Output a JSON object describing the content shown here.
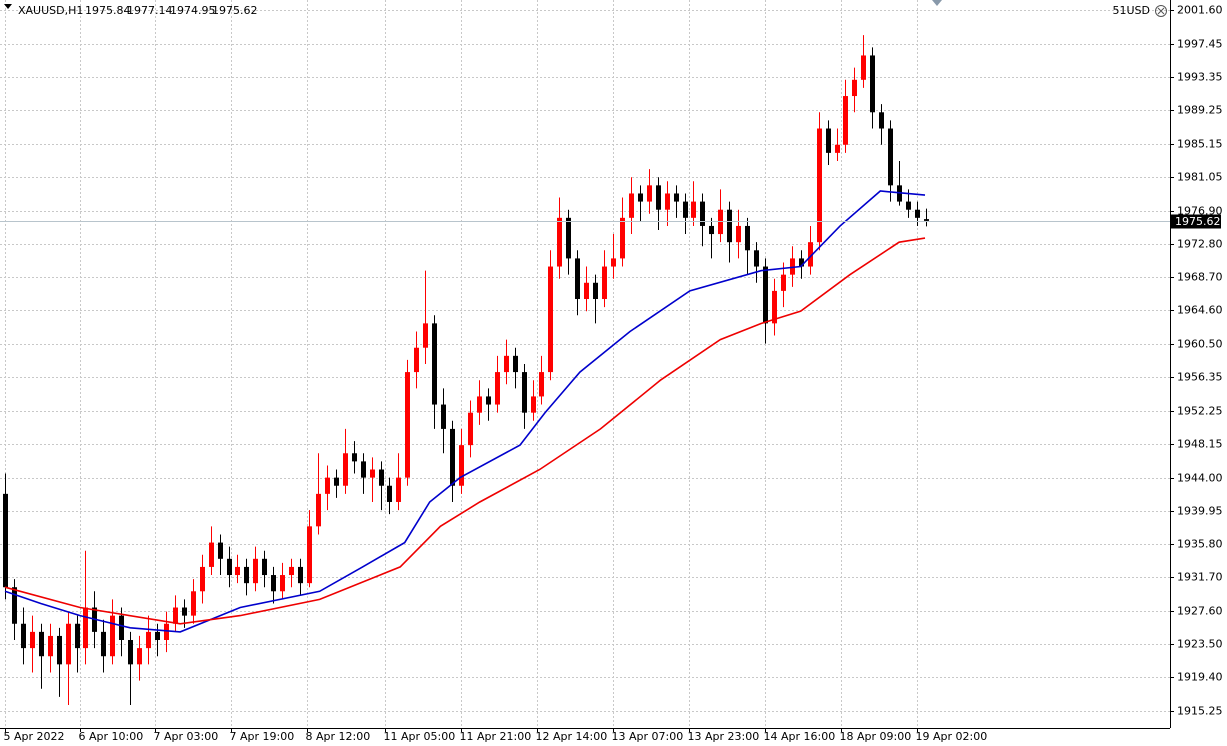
{
  "chart_data": {
    "type": "candlestick",
    "symbol": "XAUUSD,H1",
    "account_label": "51USD",
    "up_color": "#ff0000",
    "down_color": "#000000",
    "grid": true,
    "ylim": [
      1913.16,
      2002.83
    ],
    "yticks": [
      {
        "value": 2001.6,
        "label": "2001.60"
      },
      {
        "value": 1997.45,
        "label": "1997.45"
      },
      {
        "value": 1993.35,
        "label": "1993.35"
      },
      {
        "value": 1989.25,
        "label": "1989.25"
      },
      {
        "value": 1985.15,
        "label": "1985.15"
      },
      {
        "value": 1981.05,
        "label": "1981.05"
      },
      {
        "value": 1976.9,
        "label": "1976.90"
      },
      {
        "value": 1972.8,
        "label": "1972.80"
      },
      {
        "value": 1968.7,
        "label": "1968.70"
      },
      {
        "value": 1964.6,
        "label": "1964.60"
      },
      {
        "value": 1960.5,
        "label": "1960.50"
      },
      {
        "value": 1956.35,
        "label": "1956.35"
      },
      {
        "value": 1952.25,
        "label": "1952.25"
      },
      {
        "value": 1948.15,
        "label": "1948.15"
      },
      {
        "value": 1944.0,
        "label": "1944.00"
      },
      {
        "value": 1939.95,
        "label": "1939.95"
      },
      {
        "value": 1935.8,
        "label": "1935.80"
      },
      {
        "value": 1931.7,
        "label": "1931.70"
      },
      {
        "value": 1927.6,
        "label": "1927.60"
      },
      {
        "value": 1923.5,
        "label": "1923.50"
      },
      {
        "value": 1919.4,
        "label": "1919.40"
      },
      {
        "value": 1915.25,
        "label": "1915.25"
      }
    ],
    "xlim": [
      -0.56,
      130.3
    ],
    "xticks": [
      {
        "value": 0,
        "label": "5 Apr 2022"
      },
      {
        "value": 8.4,
        "label": "6 Apr 10:00"
      },
      {
        "value": 16.8,
        "label": "7 Apr 03:00"
      },
      {
        "value": 25.3,
        "label": "7 Apr 19:00"
      },
      {
        "value": 33.8,
        "label": "8 Apr 12:00"
      },
      {
        "value": 42.5,
        "label": "11 Apr 05:00"
      },
      {
        "value": 51,
        "label": "11 Apr 21:00"
      },
      {
        "value": 59.5,
        "label": "12 Apr 14:00"
      },
      {
        "value": 68,
        "label": "13 Apr 07:00"
      },
      {
        "value": 76.5,
        "label": "13 Apr 23:00"
      },
      {
        "value": 85,
        "label": "14 Apr 16:00"
      },
      {
        "value": 93.5,
        "label": "18 Apr 09:00"
      },
      {
        "value": 102,
        "label": "19 Apr 02:00"
      }
    ],
    "candles": [
      [
        1942,
        1944.5,
        1929,
        1930.5
      ],
      [
        1930.5,
        1931.5,
        1924,
        1926
      ],
      [
        1926,
        1928,
        1921,
        1923
      ],
      [
        1923,
        1927,
        1920,
        1925
      ],
      [
        1925,
        1926,
        1918,
        1922
      ],
      [
        1922,
        1926,
        1920,
        1924.5
      ],
      [
        1924.5,
        1925.5,
        1917,
        1921
      ],
      [
        1921,
        1927.5,
        1916,
        1926
      ],
      [
        1926,
        1927,
        1920,
        1923
      ],
      [
        1923,
        1935,
        1921,
        1928
      ],
      [
        1928,
        1930,
        1923,
        1925
      ],
      [
        1925,
        1926.5,
        1920,
        1922
      ],
      [
        1922,
        1929,
        1921,
        1927
      ],
      [
        1927,
        1928,
        1922,
        1924
      ],
      [
        1924,
        1925,
        1916,
        1921
      ],
      [
        1921,
        1924.5,
        1919,
        1923
      ],
      [
        1923,
        1927,
        1921,
        1925
      ],
      [
        1925,
        1926,
        1922,
        1924
      ],
      [
        1924,
        1927.5,
        1922.5,
        1926
      ],
      [
        1926,
        1929.5,
        1925,
        1928
      ],
      [
        1928,
        1929,
        1925.5,
        1927
      ],
      [
        1927,
        1931.5,
        1926,
        1930
      ],
      [
        1930,
        1934.5,
        1928.5,
        1933
      ],
      [
        1933,
        1938,
        1932,
        1936
      ],
      [
        1936,
        1937,
        1932,
        1934
      ],
      [
        1934,
        1935.5,
        1930.5,
        1932
      ],
      [
        1932,
        1934.5,
        1931,
        1933
      ],
      [
        1933,
        1934,
        1929.5,
        1931
      ],
      [
        1931,
        1935.5,
        1930,
        1934
      ],
      [
        1934,
        1935,
        1930.5,
        1932
      ],
      [
        1932,
        1933,
        1928.5,
        1930
      ],
      [
        1930,
        1933.5,
        1929,
        1932
      ],
      [
        1932,
        1934,
        1930.5,
        1933
      ],
      [
        1933,
        1934,
        1929.5,
        1931
      ],
      [
        1931,
        1940,
        1930.5,
        1938
      ],
      [
        1938,
        1947,
        1937,
        1942
      ],
      [
        1942,
        1945.5,
        1940,
        1944
      ],
      [
        1944,
        1945,
        1941.5,
        1943
      ],
      [
        1943,
        1950,
        1942,
        1947
      ],
      [
        1947,
        1948.5,
        1944.5,
        1946
      ],
      [
        1946,
        1947,
        1942,
        1944
      ],
      [
        1944,
        1946.5,
        1941,
        1945
      ],
      [
        1945,
        1946,
        1940,
        1943
      ],
      [
        1943,
        1944,
        1939.5,
        1941
      ],
      [
        1941,
        1947,
        1940,
        1944
      ],
      [
        1944,
        1958.5,
        1943,
        1957
      ],
      [
        1957,
        1962,
        1955,
        1960
      ],
      [
        1960,
        1969.5,
        1958,
        1963
      ],
      [
        1963,
        1964,
        1950,
        1953
      ],
      [
        1953,
        1955,
        1947,
        1950
      ],
      [
        1950,
        1951,
        1941,
        1943
      ],
      [
        1943,
        1950,
        1942,
        1948
      ],
      [
        1948,
        1953.5,
        1946.5,
        1952
      ],
      [
        1952,
        1956,
        1950.5,
        1954
      ],
      [
        1954,
        1955,
        1951,
        1953
      ],
      [
        1953,
        1959,
        1952,
        1957
      ],
      [
        1957,
        1961,
        1955.5,
        1959
      ],
      [
        1959,
        1960,
        1955,
        1957
      ],
      [
        1957,
        1958,
        1950,
        1952
      ],
      [
        1952,
        1956,
        1951,
        1954
      ],
      [
        1954,
        1959,
        1953,
        1957
      ],
      [
        1957,
        1972,
        1956,
        1970
      ],
      [
        1970,
        1978.5,
        1968.5,
        1976
      ],
      [
        1976,
        1977,
        1969,
        1971
      ],
      [
        1971,
        1972,
        1964,
        1966
      ],
      [
        1966,
        1970,
        1964.5,
        1968
      ],
      [
        1968,
        1969,
        1963,
        1966
      ],
      [
        1966,
        1972,
        1965,
        1970
      ],
      [
        1970,
        1974,
        1968.5,
        1971
      ],
      [
        1971,
        1978.5,
        1970,
        1976
      ],
      [
        1976,
        1981,
        1974,
        1979
      ],
      [
        1979,
        1980,
        1975.5,
        1978
      ],
      [
        1978,
        1982,
        1976.5,
        1980
      ],
      [
        1980,
        1981,
        1974.5,
        1977
      ],
      [
        1977,
        1980.5,
        1975,
        1979
      ],
      [
        1979,
        1980,
        1976,
        1978
      ],
      [
        1978,
        1979,
        1974,
        1976
      ],
      [
        1976,
        1980.5,
        1975,
        1978
      ],
      [
        1978,
        1979,
        1972.5,
        1975
      ],
      [
        1975,
        1976,
        1971,
        1974
      ],
      [
        1974,
        1979.5,
        1973,
        1977
      ],
      [
        1977,
        1978,
        1970.5,
        1973
      ],
      [
        1973,
        1977,
        1971,
        1975
      ],
      [
        1975,
        1976,
        1969,
        1972
      ],
      [
        1972,
        1973,
        1968,
        1970
      ],
      [
        1970,
        1971,
        1960.5,
        1963
      ],
      [
        1963,
        1968.5,
        1961.5,
        1967
      ],
      [
        1967,
        1970.5,
        1965,
        1969
      ],
      [
        1969,
        1972.5,
        1967.5,
        1971
      ],
      [
        1971,
        1972,
        1968.5,
        1970
      ],
      [
        1970,
        1975,
        1969,
        1973
      ],
      [
        1973,
        1989,
        1972,
        1987
      ],
      [
        1987,
        1988,
        1982.5,
        1984
      ],
      [
        1984,
        1987,
        1983,
        1985
      ],
      [
        1985,
        1993,
        1984,
        1991
      ],
      [
        1991,
        1994.5,
        1989,
        1993
      ],
      [
        1993,
        1998.5,
        1992,
        1996
      ],
      [
        1996,
        1997,
        1987,
        1989
      ],
      [
        1989,
        1990,
        1985,
        1987
      ],
      [
        1987,
        1988,
        1978,
        1980
      ],
      [
        1980,
        1983,
        1977.5,
        1978
      ],
      [
        1978,
        1979.5,
        1976,
        1977
      ],
      [
        1977,
        1978,
        1975,
        1976
      ],
      [
        1975.84,
        1977.14,
        1974.95,
        1975.62
      ]
    ],
    "series": [
      {
        "color": "#0000cc",
        "x": [
          0,
          4,
          8.4,
          14,
          19.6,
          26.3,
          35.2,
          40,
          44.7,
          47.5,
          50.9,
          57.6,
          60.4,
          64.3,
          69.9,
          76.6,
          84.6,
          89,
          93.4,
          97.9,
          102.9
        ],
        "values": [
          1930,
          1928.5,
          1927,
          1925.5,
          1925,
          1928,
          1930,
          1933,
          1936,
          1941,
          1944,
          1948,
          1952,
          1957,
          1962,
          1967,
          1969.5,
          1970,
          1975,
          1979.3,
          1978.8
        ]
      },
      {
        "color": "#ee0000",
        "x": [
          0,
          8.4,
          19.6,
          26.3,
          35.2,
          44.2,
          48.7,
          53.1,
          59.8,
          66.6,
          73.3,
          80,
          84.6,
          89,
          94.5,
          100,
          102.9
        ],
        "values": [
          1930.5,
          1928,
          1926,
          1927,
          1929,
          1933,
          1938,
          1941,
          1945,
          1950,
          1956,
          1961,
          1963,
          1964.5,
          1969,
          1973,
          1973.5
        ]
      }
    ]
  }
}
